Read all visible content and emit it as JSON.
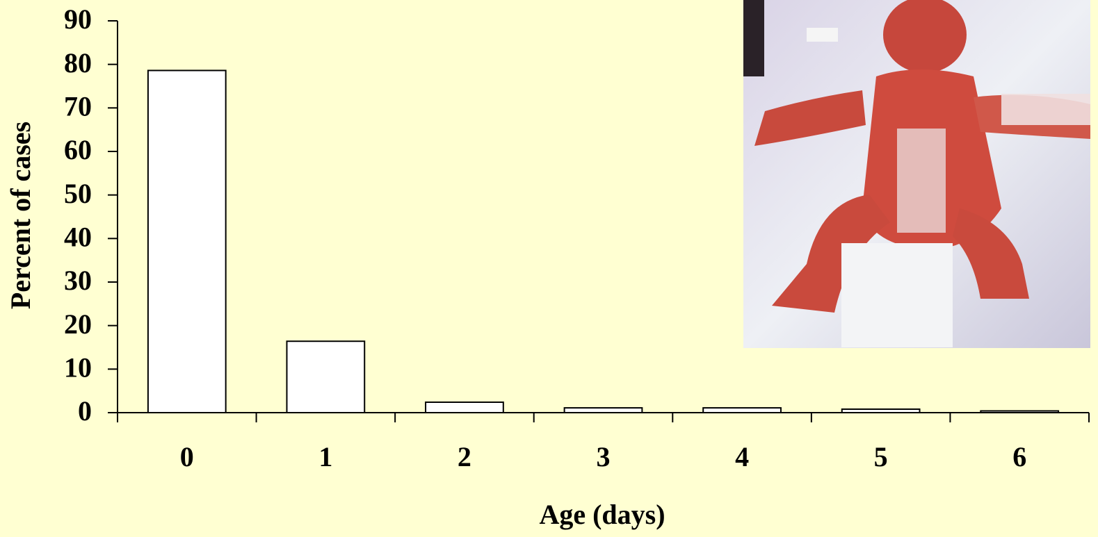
{
  "chart_data": {
    "type": "bar",
    "x_label": "Age (days)",
    "y_label": "Percent of cases",
    "categories": [
      "0",
      "1",
      "2",
      "3",
      "4",
      "5",
      "6"
    ],
    "values": [
      78.6,
      16.4,
      2.4,
      1.1,
      1.1,
      0.8,
      0.4
    ],
    "color": "#ffffff",
    "ylim": [
      0,
      90
    ],
    "yticks": [
      0,
      10,
      20,
      30,
      40,
      50,
      60,
      70,
      80,
      90
    ],
    "grid": false
  }
}
